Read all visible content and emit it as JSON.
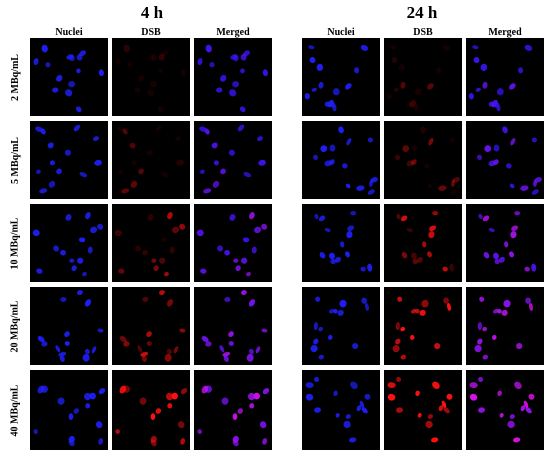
{
  "time_points": [
    "4 h",
    "24 h"
  ],
  "channels": [
    "Nuclei",
    "DSB",
    "Merged"
  ],
  "concentrations": [
    "2 MBq/mL",
    "5 MBq/mL",
    "10 MBq/mL",
    "20 MBq/mL",
    "40 MBq/mL"
  ],
  "colors": {
    "background": "#ffffff",
    "panel": "#000000",
    "nuclei": "#2020ff",
    "dsb": "#ff1010",
    "merged": "#d020ff"
  },
  "panel_grid": {
    "group_4h": {
      "Nuclei": [
        "nuclei-2-4h",
        "nuclei-5-4h",
        "nuclei-10-4h",
        "nuclei-20-4h",
        "nuclei-40-4h"
      ],
      "DSB": [
        "dsb-2-4h",
        "dsb-5-4h",
        "dsb-10-4h",
        "dsb-20-4h",
        "dsb-40-4h"
      ],
      "Merged": [
        "merged-2-4h",
        "merged-5-4h",
        "merged-10-4h",
        "merged-20-4h",
        "merged-40-4h"
      ]
    },
    "group_24h": {
      "Nuclei": [
        "nuclei-2-24h",
        "nuclei-5-24h",
        "nuclei-10-24h",
        "nuclei-20-24h",
        "nuclei-40-24h"
      ],
      "DSB": [
        "dsb-2-24h",
        "dsb-5-24h",
        "dsb-10-24h",
        "dsb-20-24h",
        "dsb-40-24h"
      ],
      "Merged": [
        "merged-2-24h",
        "merged-5-24h",
        "merged-10-24h",
        "merged-20-24h",
        "merged-40-24h"
      ]
    }
  }
}
